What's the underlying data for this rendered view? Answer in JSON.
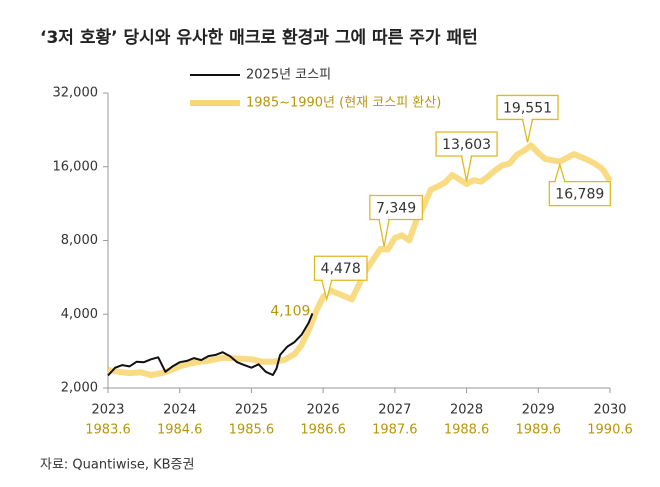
{
  "chart_data": {
    "type": "line",
    "title": "‘3저 호황’ 당시와 유사한 매크로 환경과 그에 따른 주가 패턴",
    "source": "자료: Quantiwise, KB증권",
    "log_scale": true,
    "xlim": [
      2023,
      2030
    ],
    "xticks": [
      2023,
      2024,
      2025,
      2026,
      2027,
      2028,
      2029,
      2030
    ],
    "x2_labels": [
      "1983.6",
      "1984.6",
      "1985.6",
      "1986.6",
      "1987.6",
      "1988.6",
      "1989.6",
      "1990.6"
    ],
    "ylim": [
      2000,
      32000
    ],
    "yticks": [
      {
        "value": 2000,
        "label": "2,000"
      },
      {
        "value": 4000,
        "label": "4,000"
      },
      {
        "value": 8000,
        "label": "8,000"
      },
      {
        "value": 16000,
        "label": "16,000"
      },
      {
        "value": 32000,
        "label": "32,000"
      }
    ],
    "series": [
      {
        "name": "2025년 코스피",
        "color": "#111111",
        "x": [
          2023.0,
          2023.1,
          2023.2,
          2023.3,
          2023.4,
          2023.5,
          2023.6,
          2023.7,
          2023.8,
          2023.9,
          2024.0,
          2024.1,
          2024.2,
          2024.3,
          2024.4,
          2024.5,
          2024.6,
          2024.7,
          2024.8,
          2024.9,
          2025.0,
          2025.1,
          2025.2,
          2025.3,
          2025.35,
          2025.4,
          2025.5,
          2025.6,
          2025.7,
          2025.8,
          2025.85
        ],
        "values": [
          2250,
          2420,
          2480,
          2450,
          2560,
          2550,
          2620,
          2670,
          2330,
          2450,
          2550,
          2580,
          2650,
          2600,
          2700,
          2730,
          2800,
          2700,
          2550,
          2480,
          2420,
          2500,
          2330,
          2260,
          2400,
          2730,
          2950,
          3080,
          3300,
          3700,
          4030
        ]
      },
      {
        "name": "1985~1990년 (현재 코스피 환산)",
        "color": "#f7d774",
        "x": [
          2023.0,
          2023.15,
          2023.3,
          2023.45,
          2023.6,
          2023.75,
          2023.9,
          2024.0,
          2024.15,
          2024.3,
          2024.45,
          2024.6,
          2024.8,
          2025.0,
          2025.15,
          2025.3,
          2025.45,
          2025.6,
          2025.7,
          2025.8,
          2025.9,
          2026.0,
          2026.1,
          2026.25,
          2026.4,
          2026.5,
          2026.6,
          2026.7,
          2026.8,
          2026.9,
          2027.0,
          2027.1,
          2027.2,
          2027.3,
          2027.4,
          2027.5,
          2027.6,
          2027.7,
          2027.8,
          2027.9,
          2028.0,
          2028.1,
          2028.2,
          2028.3,
          2028.4,
          2028.5,
          2028.6,
          2028.7,
          2028.8,
          2028.9,
          2029.0,
          2029.1,
          2029.2,
          2029.3,
          2029.4,
          2029.5,
          2029.6,
          2029.7,
          2029.8,
          2029.9,
          2030.0
        ],
        "values": [
          2370,
          2330,
          2300,
          2320,
          2260,
          2300,
          2380,
          2450,
          2520,
          2560,
          2600,
          2660,
          2640,
          2620,
          2560,
          2560,
          2600,
          2750,
          3000,
          3450,
          4100,
          4700,
          5000,
          4800,
          4600,
          5300,
          6060,
          6700,
          7400,
          7350,
          8200,
          8400,
          8000,
          9700,
          11000,
          12900,
          13300,
          13800,
          14800,
          14200,
          13600,
          14100,
          13900,
          14600,
          15500,
          16200,
          16500,
          17900,
          18600,
          19551,
          18200,
          17200,
          17000,
          16789,
          17400,
          18000,
          17500,
          17000,
          16400,
          15600,
          14000
        ]
      }
    ],
    "annotations": [
      {
        "label": "4,109",
        "x": 2025.85,
        "value": 4109
      },
      {
        "label": "4,478",
        "x": 2026.05,
        "value": 4478
      },
      {
        "label": "7,349",
        "x": 2026.85,
        "value": 7349
      },
      {
        "label": "13,603",
        "x": 2028.0,
        "value": 13603
      },
      {
        "label": "19,551",
        "x": 2028.85,
        "value": 19551
      },
      {
        "label": "16,789",
        "x": 2029.3,
        "value": 16789
      }
    ]
  }
}
